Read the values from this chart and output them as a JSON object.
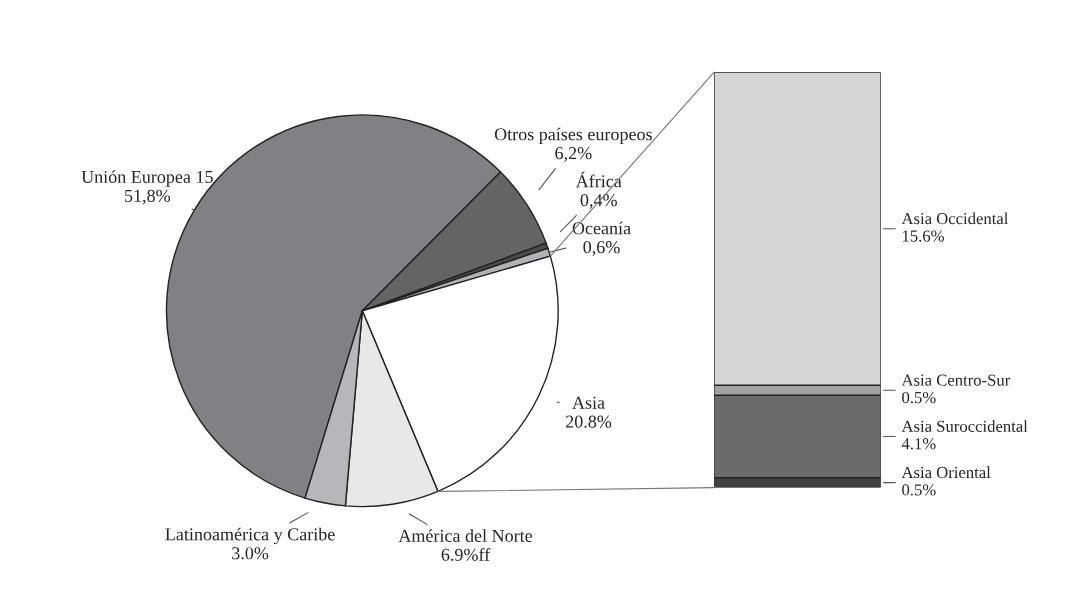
{
  "chart_data": [
    {
      "type": "pie",
      "categories": [
        "Unión Europea 15",
        "Otros países europeos",
        "África",
        "Oceanía",
        "Asia",
        "América del Norte",
        "Latinoamérica y Caribe"
      ],
      "values": [
        51.8,
        6.2,
        0.4,
        0.6,
        20.8,
        6.9,
        3.0
      ],
      "value_labels": [
        "51,8%",
        "6,2%",
        "0,4%",
        "0,6%",
        "20.8%",
        "6.9%ff",
        "3.0%"
      ],
      "colors": [
        "#808185",
        "#636466",
        "#4a4b4d",
        "#b0b2b5",
        "#ffffff",
        "#e8e8e8",
        "#b5b7ba"
      ]
    },
    {
      "type": "bar",
      "stacked": true,
      "categories": [
        null
      ],
      "series": [
        {
          "name": "Asia Oriental",
          "color": "#3f4042",
          "values": [
            0.5
          ],
          "value_labels": [
            "0.5%"
          ]
        },
        {
          "name": "Asia Suroccidental",
          "color": "#6a6b6d",
          "values": [
            4.1
          ],
          "value_labels": [
            "4.1%"
          ]
        },
        {
          "name": "Asia Centro-Sur",
          "color": "#a0a2a5",
          "values": [
            0.5
          ],
          "value_labels": [
            "0.5%"
          ]
        },
        {
          "name": "Asia Occidental",
          "color": "#d4d5d7",
          "values": [
            15.6
          ],
          "value_labels": [
            "15.6%"
          ]
        }
      ]
    }
  ]
}
